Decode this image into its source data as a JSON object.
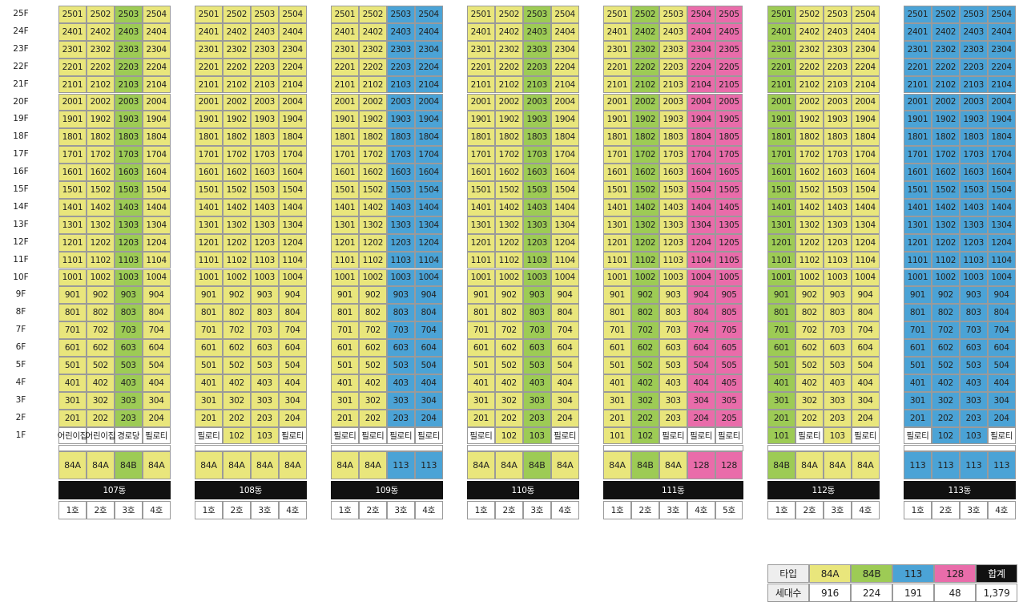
{
  "floors": [
    "25F",
    "24F",
    "23F",
    "22F",
    "21F",
    "20F",
    "19F",
    "18F",
    "17F",
    "16F",
    "15F",
    "14F",
    "13F",
    "12F",
    "11F",
    "10F",
    "9F",
    "8F",
    "7F",
    "6F",
    "5F",
    "4F",
    "3F",
    "2F",
    "1F"
  ],
  "type_colors": {
    "84A": "#e9e67c",
    "84B": "#9dcb55",
    "113": "#4ba3d6",
    "128": "#e96caa"
  },
  "buildings": [
    {
      "name": "107동",
      "types": [
        "84A",
        "84A",
        "84B",
        "84A"
      ],
      "lines": [
        "1호",
        "2호",
        "3호",
        "4호"
      ],
      "units": [
        [
          "2501",
          "2502",
          "2503",
          "2504"
        ],
        [
          "2401",
          "2402",
          "2403",
          "2404"
        ],
        [
          "2301",
          "2302",
          "2303",
          "2304"
        ],
        [
          "2201",
          "2202",
          "2203",
          "2204"
        ],
        [
          "2101",
          "2102",
          "2103",
          "2104"
        ],
        [
          "2001",
          "2002",
          "2003",
          "2004"
        ],
        [
          "1901",
          "1902",
          "1903",
          "1904"
        ],
        [
          "1801",
          "1802",
          "1803",
          "1804"
        ],
        [
          "1701",
          "1702",
          "1703",
          "1704"
        ],
        [
          "1601",
          "1602",
          "1603",
          "1604"
        ],
        [
          "1501",
          "1502",
          "1503",
          "1504"
        ],
        [
          "1401",
          "1402",
          "1403",
          "1404"
        ],
        [
          "1301",
          "1302",
          "1303",
          "1304"
        ],
        [
          "1201",
          "1202",
          "1203",
          "1204"
        ],
        [
          "1101",
          "1102",
          "1103",
          "1104"
        ],
        [
          "1001",
          "1002",
          "1003",
          "1004"
        ],
        [
          "901",
          "902",
          "903",
          "904"
        ],
        [
          "801",
          "802",
          "803",
          "804"
        ],
        [
          "701",
          "702",
          "703",
          "704"
        ],
        [
          "601",
          "602",
          "603",
          "604"
        ],
        [
          "501",
          "502",
          "503",
          "504"
        ],
        [
          "401",
          "402",
          "403",
          "404"
        ],
        [
          "301",
          "302",
          "303",
          "304"
        ],
        [
          "201",
          "202",
          "203",
          "204"
        ],
        [
          "어린이집",
          "어린이집",
          "경로당",
          "필로티"
        ]
      ]
    },
    {
      "name": "108동",
      "types": [
        "84A",
        "84A",
        "84A",
        "84A"
      ],
      "lines": [
        "1호",
        "2호",
        "3호",
        "4호"
      ],
      "units": [
        [
          "2501",
          "2502",
          "2503",
          "2504"
        ],
        [
          "2401",
          "2402",
          "2403",
          "2404"
        ],
        [
          "2301",
          "2302",
          "2303",
          "2304"
        ],
        [
          "2201",
          "2202",
          "2203",
          "2204"
        ],
        [
          "2101",
          "2102",
          "2103",
          "2104"
        ],
        [
          "2001",
          "2002",
          "2003",
          "2004"
        ],
        [
          "1901",
          "1902",
          "1903",
          "1904"
        ],
        [
          "1801",
          "1802",
          "1803",
          "1804"
        ],
        [
          "1701",
          "1702",
          "1703",
          "1704"
        ],
        [
          "1601",
          "1602",
          "1603",
          "1604"
        ],
        [
          "1501",
          "1502",
          "1503",
          "1504"
        ],
        [
          "1401",
          "1402",
          "1403",
          "1404"
        ],
        [
          "1301",
          "1302",
          "1303",
          "1304"
        ],
        [
          "1201",
          "1202",
          "1203",
          "1204"
        ],
        [
          "1101",
          "1102",
          "1103",
          "1104"
        ],
        [
          "1001",
          "1002",
          "1003",
          "1004"
        ],
        [
          "901",
          "902",
          "903",
          "904"
        ],
        [
          "801",
          "802",
          "803",
          "804"
        ],
        [
          "701",
          "702",
          "703",
          "704"
        ],
        [
          "601",
          "602",
          "603",
          "604"
        ],
        [
          "501",
          "502",
          "503",
          "504"
        ],
        [
          "401",
          "402",
          "403",
          "404"
        ],
        [
          "301",
          "302",
          "303",
          "304"
        ],
        [
          "201",
          "202",
          "203",
          "204"
        ],
        [
          "필로티",
          "102",
          "103",
          "필로티"
        ]
      ]
    },
    {
      "name": "109동",
      "types": [
        "84A",
        "84A",
        "113",
        "113"
      ],
      "lines": [
        "1호",
        "2호",
        "3호",
        "4호"
      ],
      "units": [
        [
          "2501",
          "2502",
          "2503",
          "2504"
        ],
        [
          "2401",
          "2402",
          "2403",
          "2404"
        ],
        [
          "2301",
          "2302",
          "2303",
          "2304"
        ],
        [
          "2201",
          "2202",
          "2203",
          "2204"
        ],
        [
          "2101",
          "2102",
          "2103",
          "2104"
        ],
        [
          "2001",
          "2002",
          "2003",
          "2004"
        ],
        [
          "1901",
          "1902",
          "1903",
          "1904"
        ],
        [
          "1801",
          "1802",
          "1803",
          "1804"
        ],
        [
          "1701",
          "1702",
          "1703",
          "1704"
        ],
        [
          "1601",
          "1602",
          "1603",
          "1604"
        ],
        [
          "1501",
          "1502",
          "1503",
          "1504"
        ],
        [
          "1401",
          "1402",
          "1403",
          "1404"
        ],
        [
          "1301",
          "1302",
          "1303",
          "1304"
        ],
        [
          "1201",
          "1202",
          "1203",
          "1204"
        ],
        [
          "1101",
          "1102",
          "1103",
          "1104"
        ],
        [
          "1001",
          "1002",
          "1003",
          "1004"
        ],
        [
          "901",
          "902",
          "903",
          "904"
        ],
        [
          "801",
          "802",
          "803",
          "804"
        ],
        [
          "701",
          "702",
          "703",
          "704"
        ],
        [
          "601",
          "602",
          "603",
          "604"
        ],
        [
          "501",
          "502",
          "503",
          "504"
        ],
        [
          "401",
          "402",
          "403",
          "404"
        ],
        [
          "301",
          "302",
          "303",
          "304"
        ],
        [
          "201",
          "202",
          "203",
          "204"
        ],
        [
          "필로티",
          "필로티",
          "필로티",
          "필로티"
        ]
      ]
    },
    {
      "name": "110동",
      "types": [
        "84A",
        "84A",
        "84B",
        "84A"
      ],
      "lines": [
        "1호",
        "2호",
        "3호",
        "4호"
      ],
      "units": [
        [
          "2501",
          "2502",
          "2503",
          "2504"
        ],
        [
          "2401",
          "2402",
          "2403",
          "2404"
        ],
        [
          "2301",
          "2302",
          "2303",
          "2304"
        ],
        [
          "2201",
          "2202",
          "2203",
          "2204"
        ],
        [
          "2101",
          "2102",
          "2103",
          "2104"
        ],
        [
          "2001",
          "2002",
          "2003",
          "2004"
        ],
        [
          "1901",
          "1902",
          "1903",
          "1904"
        ],
        [
          "1801",
          "1802",
          "1803",
          "1804"
        ],
        [
          "1701",
          "1702",
          "1703",
          "1704"
        ],
        [
          "1601",
          "1602",
          "1603",
          "1604"
        ],
        [
          "1501",
          "1502",
          "1503",
          "1504"
        ],
        [
          "1401",
          "1402",
          "1403",
          "1404"
        ],
        [
          "1301",
          "1302",
          "1303",
          "1304"
        ],
        [
          "1201",
          "1202",
          "1203",
          "1204"
        ],
        [
          "1101",
          "1102",
          "1103",
          "1104"
        ],
        [
          "1001",
          "1002",
          "1003",
          "1004"
        ],
        [
          "901",
          "902",
          "903",
          "904"
        ],
        [
          "801",
          "802",
          "803",
          "804"
        ],
        [
          "701",
          "702",
          "703",
          "704"
        ],
        [
          "601",
          "602",
          "603",
          "604"
        ],
        [
          "501",
          "502",
          "503",
          "504"
        ],
        [
          "401",
          "402",
          "403",
          "404"
        ],
        [
          "301",
          "302",
          "303",
          "304"
        ],
        [
          "201",
          "202",
          "203",
          "204"
        ],
        [
          "필로티",
          "102",
          "103",
          "필로티"
        ]
      ]
    },
    {
      "name": "111동",
      "types": [
        "84A",
        "84B",
        "84A",
        "128",
        "128"
      ],
      "lines": [
        "1호",
        "2호",
        "3호",
        "4호",
        "5호"
      ],
      "units": [
        [
          "2501",
          "2502",
          "2503",
          "2504",
          "2505"
        ],
        [
          "2401",
          "2402",
          "2403",
          "2404",
          "2405"
        ],
        [
          "2301",
          "2302",
          "2303",
          "2304",
          "2305"
        ],
        [
          "2201",
          "2202",
          "2203",
          "2204",
          "2205"
        ],
        [
          "2101",
          "2102",
          "2103",
          "2104",
          "2105"
        ],
        [
          "2001",
          "2002",
          "2003",
          "2004",
          "2005"
        ],
        [
          "1901",
          "1902",
          "1903",
          "1904",
          "1905"
        ],
        [
          "1801",
          "1802",
          "1803",
          "1804",
          "1805"
        ],
        [
          "1701",
          "1702",
          "1703",
          "1704",
          "1705"
        ],
        [
          "1601",
          "1602",
          "1603",
          "1604",
          "1605"
        ],
        [
          "1501",
          "1502",
          "1503",
          "1504",
          "1505"
        ],
        [
          "1401",
          "1402",
          "1403",
          "1404",
          "1405"
        ],
        [
          "1301",
          "1302",
          "1303",
          "1304",
          "1305"
        ],
        [
          "1201",
          "1202",
          "1203",
          "1204",
          "1205"
        ],
        [
          "1101",
          "1102",
          "1103",
          "1104",
          "1105"
        ],
        [
          "1001",
          "1002",
          "1003",
          "1004",
          "1005"
        ],
        [
          "901",
          "902",
          "903",
          "904",
          "905"
        ],
        [
          "801",
          "802",
          "803",
          "804",
          "805"
        ],
        [
          "701",
          "702",
          "703",
          "704",
          "705"
        ],
        [
          "601",
          "602",
          "603",
          "604",
          "605"
        ],
        [
          "501",
          "502",
          "503",
          "504",
          "505"
        ],
        [
          "401",
          "402",
          "403",
          "404",
          "405"
        ],
        [
          "301",
          "302",
          "303",
          "304",
          "305"
        ],
        [
          "201",
          "202",
          "203",
          "204",
          "205"
        ],
        [
          "101",
          "102",
          "필로티",
          "필로티",
          "필로티"
        ]
      ]
    },
    {
      "name": "112동",
      "types": [
        "84B",
        "84A",
        "84A",
        "84A"
      ],
      "lines": [
        "1호",
        "2호",
        "3호",
        "4호"
      ],
      "units": [
        [
          "2501",
          "2502",
          "2503",
          "2504"
        ],
        [
          "2401",
          "2402",
          "2403",
          "2404"
        ],
        [
          "2301",
          "2302",
          "2303",
          "2304"
        ],
        [
          "2201",
          "2202",
          "2203",
          "2204"
        ],
        [
          "2101",
          "2102",
          "2103",
          "2104"
        ],
        [
          "2001",
          "2002",
          "2003",
          "2004"
        ],
        [
          "1901",
          "1902",
          "1903",
          "1904"
        ],
        [
          "1801",
          "1802",
          "1803",
          "1804"
        ],
        [
          "1701",
          "1702",
          "1703",
          "1704"
        ],
        [
          "1601",
          "1602",
          "1603",
          "1604"
        ],
        [
          "1501",
          "1502",
          "1503",
          "1504"
        ],
        [
          "1401",
          "1402",
          "1403",
          "1404"
        ],
        [
          "1301",
          "1302",
          "1303",
          "1304"
        ],
        [
          "1201",
          "1202",
          "1203",
          "1204"
        ],
        [
          "1101",
          "1102",
          "1103",
          "1104"
        ],
        [
          "1001",
          "1002",
          "1003",
          "1004"
        ],
        [
          "901",
          "902",
          "903",
          "904"
        ],
        [
          "801",
          "802",
          "803",
          "804"
        ],
        [
          "701",
          "702",
          "703",
          "704"
        ],
        [
          "601",
          "602",
          "603",
          "604"
        ],
        [
          "501",
          "502",
          "503",
          "504"
        ],
        [
          "401",
          "402",
          "403",
          "404"
        ],
        [
          "301",
          "302",
          "303",
          "304"
        ],
        [
          "201",
          "202",
          "203",
          "204"
        ],
        [
          "101",
          "필로티",
          "103",
          "필로티"
        ]
      ]
    },
    {
      "name": "113동",
      "types": [
        "113",
        "113",
        "113",
        "113"
      ],
      "lines": [
        "1호",
        "2호",
        "3호",
        "4호"
      ],
      "units": [
        [
          "2501",
          "2502",
          "2503",
          "2504"
        ],
        [
          "2401",
          "2402",
          "2403",
          "2404"
        ],
        [
          "2301",
          "2302",
          "2303",
          "2304"
        ],
        [
          "2201",
          "2202",
          "2203",
          "2204"
        ],
        [
          "2101",
          "2102",
          "2103",
          "2104"
        ],
        [
          "2001",
          "2002",
          "2003",
          "2004"
        ],
        [
          "1901",
          "1902",
          "1903",
          "1904"
        ],
        [
          "1801",
          "1802",
          "1803",
          "1804"
        ],
        [
          "1701",
          "1702",
          "1703",
          "1704"
        ],
        [
          "1601",
          "1602",
          "1603",
          "1604"
        ],
        [
          "1501",
          "1502",
          "1503",
          "1504"
        ],
        [
          "1401",
          "1402",
          "1403",
          "1404"
        ],
        [
          "1301",
          "1302",
          "1303",
          "1304"
        ],
        [
          "1201",
          "1202",
          "1203",
          "1204"
        ],
        [
          "1101",
          "1102",
          "1103",
          "1104"
        ],
        [
          "1001",
          "1002",
          "1003",
          "1004"
        ],
        [
          "901",
          "902",
          "903",
          "904"
        ],
        [
          "801",
          "802",
          "803",
          "804"
        ],
        [
          "701",
          "702",
          "703",
          "704"
        ],
        [
          "601",
          "602",
          "603",
          "604"
        ],
        [
          "501",
          "502",
          "503",
          "504"
        ],
        [
          "401",
          "402",
          "403",
          "404"
        ],
        [
          "301",
          "302",
          "303",
          "304"
        ],
        [
          "201",
          "202",
          "203",
          "204"
        ],
        [
          "필로티",
          "102",
          "103",
          "필로티"
        ]
      ]
    }
  ],
  "legend": {
    "header": [
      "타입",
      "84A",
      "84B",
      "113",
      "128",
      "합계"
    ],
    "counts": [
      "세대수",
      "916",
      "224",
      "191",
      "48",
      "1,379"
    ]
  }
}
